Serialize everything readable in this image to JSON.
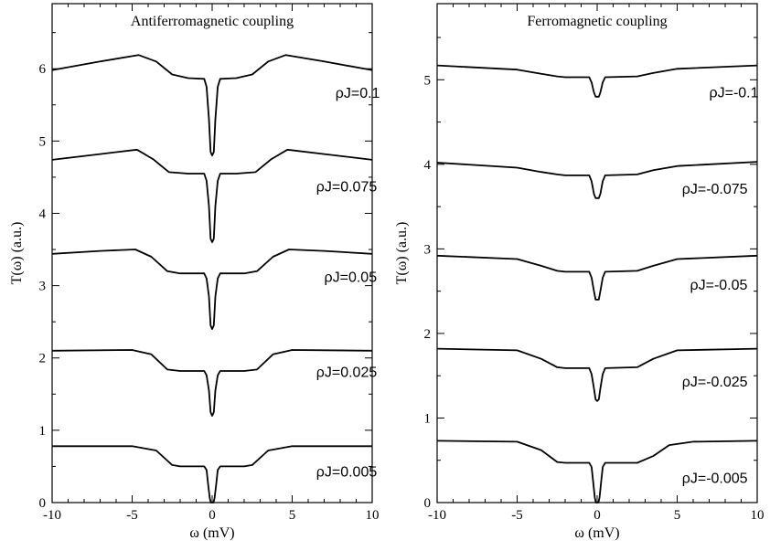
{
  "chart_data": [
    {
      "type": "line",
      "title": "Antiferromagnetic coupling",
      "xlabel": "ω (mV)",
      "ylabel": "T(ω) (a.u.)",
      "xlim": [
        -10,
        10
      ],
      "ylim": [
        0,
        6.9
      ],
      "xticks": [
        -10,
        -5,
        0,
        5,
        10
      ],
      "yticks": [
        0,
        1,
        2,
        3,
        4,
        5,
        6
      ],
      "series": [
        {
          "name": "ρJ=0.005",
          "points": [
            [
              -10,
              0.78
            ],
            [
              -5,
              0.78
            ],
            [
              -3.5,
              0.72
            ],
            [
              -2.5,
              0.52
            ],
            [
              -2,
              0.5
            ],
            [
              -0.5,
              0.5
            ],
            [
              -0.35,
              0.45
            ],
            [
              -0.25,
              0.25
            ],
            [
              -0.15,
              0.06
            ],
            [
              -0.08,
              0.0
            ],
            [
              0.08,
              0.0
            ],
            [
              0.15,
              0.06
            ],
            [
              0.25,
              0.25
            ],
            [
              0.35,
              0.45
            ],
            [
              0.5,
              0.5
            ],
            [
              2,
              0.5
            ],
            [
              2.5,
              0.52
            ],
            [
              3.5,
              0.72
            ],
            [
              5,
              0.78
            ],
            [
              10,
              0.78
            ]
          ]
        },
        {
          "name": "ρJ=0.025",
          "points": [
            [
              -10,
              2.1
            ],
            [
              -5,
              2.11
            ],
            [
              -3.8,
              2.05
            ],
            [
              -2.8,
              1.84
            ],
            [
              -2,
              1.82
            ],
            [
              -0.5,
              1.82
            ],
            [
              -0.35,
              1.76
            ],
            [
              -0.2,
              1.55
            ],
            [
              -0.1,
              1.25
            ],
            [
              0,
              1.2
            ],
            [
              0.1,
              1.25
            ],
            [
              0.2,
              1.55
            ],
            [
              0.35,
              1.76
            ],
            [
              0.5,
              1.82
            ],
            [
              2,
              1.82
            ],
            [
              2.8,
              1.84
            ],
            [
              3.8,
              2.05
            ],
            [
              5,
              2.11
            ],
            [
              10,
              2.1
            ]
          ]
        },
        {
          "name": "ρJ=0.05",
          "points": [
            [
              -10,
              3.44
            ],
            [
              -7,
              3.48
            ],
            [
              -4.8,
              3.5
            ],
            [
              -3.8,
              3.4
            ],
            [
              -2.8,
              3.2
            ],
            [
              -2,
              3.17
            ],
            [
              -0.5,
              3.17
            ],
            [
              -0.35,
              3.1
            ],
            [
              -0.2,
              2.85
            ],
            [
              -0.1,
              2.45
            ],
            [
              0,
              2.4
            ],
            [
              0.1,
              2.45
            ],
            [
              0.2,
              2.85
            ],
            [
              0.35,
              3.1
            ],
            [
              0.5,
              3.17
            ],
            [
              2,
              3.17
            ],
            [
              2.8,
              3.2
            ],
            [
              3.8,
              3.4
            ],
            [
              4.8,
              3.5
            ],
            [
              7,
              3.48
            ],
            [
              10,
              3.44
            ]
          ]
        },
        {
          "name": "ρJ=0.075",
          "points": [
            [
              -10,
              4.74
            ],
            [
              -7,
              4.82
            ],
            [
              -4.7,
              4.88
            ],
            [
              -3.7,
              4.75
            ],
            [
              -2.7,
              4.57
            ],
            [
              -1.5,
              4.55
            ],
            [
              -0.5,
              4.55
            ],
            [
              -0.35,
              4.45
            ],
            [
              -0.2,
              4.1
            ],
            [
              -0.1,
              3.65
            ],
            [
              0,
              3.6
            ],
            [
              0.1,
              3.65
            ],
            [
              0.2,
              4.1
            ],
            [
              0.35,
              4.45
            ],
            [
              0.5,
              4.55
            ],
            [
              1.5,
              4.55
            ],
            [
              2.7,
              4.57
            ],
            [
              3.7,
              4.75
            ],
            [
              4.7,
              4.88
            ],
            [
              7,
              4.82
            ],
            [
              10,
              4.74
            ]
          ]
        },
        {
          "name": "ρJ=0.1",
          "points": [
            [
              -10,
              5.98
            ],
            [
              -7,
              6.1
            ],
            [
              -4.6,
              6.19
            ],
            [
              -3.5,
              6.1
            ],
            [
              -2.5,
              5.92
            ],
            [
              -1.5,
              5.87
            ],
            [
              -0.5,
              5.86
            ],
            [
              -0.35,
              5.75
            ],
            [
              -0.2,
              5.3
            ],
            [
              -0.1,
              4.85
            ],
            [
              0,
              4.8
            ],
            [
              0.1,
              4.85
            ],
            [
              0.2,
              5.3
            ],
            [
              0.35,
              5.75
            ],
            [
              0.5,
              5.86
            ],
            [
              1.5,
              5.87
            ],
            [
              2.5,
              5.92
            ],
            [
              3.5,
              6.1
            ],
            [
              4.6,
              6.19
            ],
            [
              7,
              6.1
            ],
            [
              10,
              5.98
            ]
          ]
        }
      ],
      "annotations": [
        {
          "text": "ρJ=0.1",
          "x": 7.7,
          "y": 5.6
        },
        {
          "text": "ρJ=0.075",
          "x": 6.5,
          "y": 4.3
        },
        {
          "text": "ρJ=0.05",
          "x": 7.0,
          "y": 3.05
        },
        {
          "text": "ρJ=0.025",
          "x": 6.5,
          "y": 1.74
        },
        {
          "text": "ρJ=0.005",
          "x": 6.5,
          "y": 0.36
        }
      ]
    },
    {
      "type": "line",
      "title": "Ferromagnetic coupling",
      "xlabel": "ω (mV)",
      "ylabel": "T(ω) (a.u.)",
      "xlim": [
        -10,
        10
      ],
      "ylim": [
        0,
        5.9
      ],
      "xticks": [
        -10,
        -5,
        0,
        5,
        10
      ],
      "yticks": [
        0,
        1,
        2,
        3,
        4,
        5
      ],
      "series": [
        {
          "name": "ρJ=-0.005",
          "points": [
            [
              -10,
              0.73
            ],
            [
              -5,
              0.72
            ],
            [
              -3.5,
              0.62
            ],
            [
              -2.5,
              0.48
            ],
            [
              -2,
              0.47
            ],
            [
              -0.5,
              0.47
            ],
            [
              -0.35,
              0.42
            ],
            [
              -0.25,
              0.25
            ],
            [
              -0.15,
              0.06
            ],
            [
              -0.08,
              0.0
            ],
            [
              0.08,
              0.0
            ],
            [
              0.15,
              0.06
            ],
            [
              0.25,
              0.25
            ],
            [
              0.35,
              0.42
            ],
            [
              0.5,
              0.47
            ],
            [
              2.5,
              0.47
            ],
            [
              3.5,
              0.55
            ],
            [
              4.5,
              0.68
            ],
            [
              6,
              0.72
            ],
            [
              10,
              0.73
            ]
          ]
        },
        {
          "name": "ρJ=-0.025",
          "points": [
            [
              -10,
              1.82
            ],
            [
              -5,
              1.8
            ],
            [
              -3.5,
              1.7
            ],
            [
              -2.5,
              1.6
            ],
            [
              -2,
              1.59
            ],
            [
              -0.5,
              1.59
            ],
            [
              -0.35,
              1.52
            ],
            [
              -0.2,
              1.35
            ],
            [
              -0.1,
              1.22
            ],
            [
              0,
              1.2
            ],
            [
              0.1,
              1.22
            ],
            [
              0.2,
              1.35
            ],
            [
              0.35,
              1.52
            ],
            [
              0.5,
              1.59
            ],
            [
              2.5,
              1.6
            ],
            [
              3.5,
              1.7
            ],
            [
              5,
              1.8
            ],
            [
              10,
              1.82
            ]
          ]
        },
        {
          "name": "ρJ=-0.05",
          "points": [
            [
              -10,
              2.92
            ],
            [
              -5,
              2.88
            ],
            [
              -3.5,
              2.8
            ],
            [
              -2.5,
              2.74
            ],
            [
              -2,
              2.73
            ],
            [
              -0.5,
              2.73
            ],
            [
              -0.35,
              2.66
            ],
            [
              -0.2,
              2.5
            ],
            [
              -0.1,
              2.4
            ],
            [
              0,
              2.4
            ],
            [
              0.1,
              2.4
            ],
            [
              0.2,
              2.5
            ],
            [
              0.35,
              2.66
            ],
            [
              0.5,
              2.73
            ],
            [
              2.5,
              2.74
            ],
            [
              3.5,
              2.8
            ],
            [
              5,
              2.88
            ],
            [
              10,
              2.92
            ]
          ]
        },
        {
          "name": "ρJ=-0.075",
          "points": [
            [
              -10,
              4.02
            ],
            [
              -5,
              3.96
            ],
            [
              -3.5,
              3.91
            ],
            [
              -2.5,
              3.88
            ],
            [
              -2,
              3.87
            ],
            [
              -0.5,
              3.87
            ],
            [
              -0.35,
              3.8
            ],
            [
              -0.2,
              3.65
            ],
            [
              -0.1,
              3.6
            ],
            [
              0,
              3.6
            ],
            [
              0.1,
              3.6
            ],
            [
              0.2,
              3.65
            ],
            [
              0.35,
              3.8
            ],
            [
              0.5,
              3.87
            ],
            [
              2.5,
              3.88
            ],
            [
              3.5,
              3.93
            ],
            [
              5,
              3.98
            ],
            [
              10,
              4.03
            ]
          ]
        },
        {
          "name": "ρJ=-0.1",
          "points": [
            [
              -10,
              5.17
            ],
            [
              -5,
              5.12
            ],
            [
              -3.5,
              5.07
            ],
            [
              -2.5,
              5.04
            ],
            [
              -2,
              5.03
            ],
            [
              -0.5,
              5.03
            ],
            [
              -0.35,
              4.97
            ],
            [
              -0.2,
              4.85
            ],
            [
              -0.1,
              4.8
            ],
            [
              0,
              4.8
            ],
            [
              0.1,
              4.8
            ],
            [
              0.2,
              4.85
            ],
            [
              0.35,
              4.97
            ],
            [
              0.5,
              5.03
            ],
            [
              2.5,
              5.04
            ],
            [
              3.5,
              5.08
            ],
            [
              5,
              5.13
            ],
            [
              10,
              5.17
            ]
          ]
        }
      ],
      "annotations": [
        {
          "text": "ρJ=-0.1",
          "x": 7.0,
          "y": 4.79
        },
        {
          "text": "ρJ=-0.075",
          "x": 5.3,
          "y": 3.65
        },
        {
          "text": "ρJ=-0.05",
          "x": 5.8,
          "y": 2.52
        },
        {
          "text": "ρJ=-0.025",
          "x": 5.3,
          "y": 1.37
        },
        {
          "text": "ρJ=-0.005",
          "x": 5.3,
          "y": 0.23
        }
      ]
    }
  ]
}
